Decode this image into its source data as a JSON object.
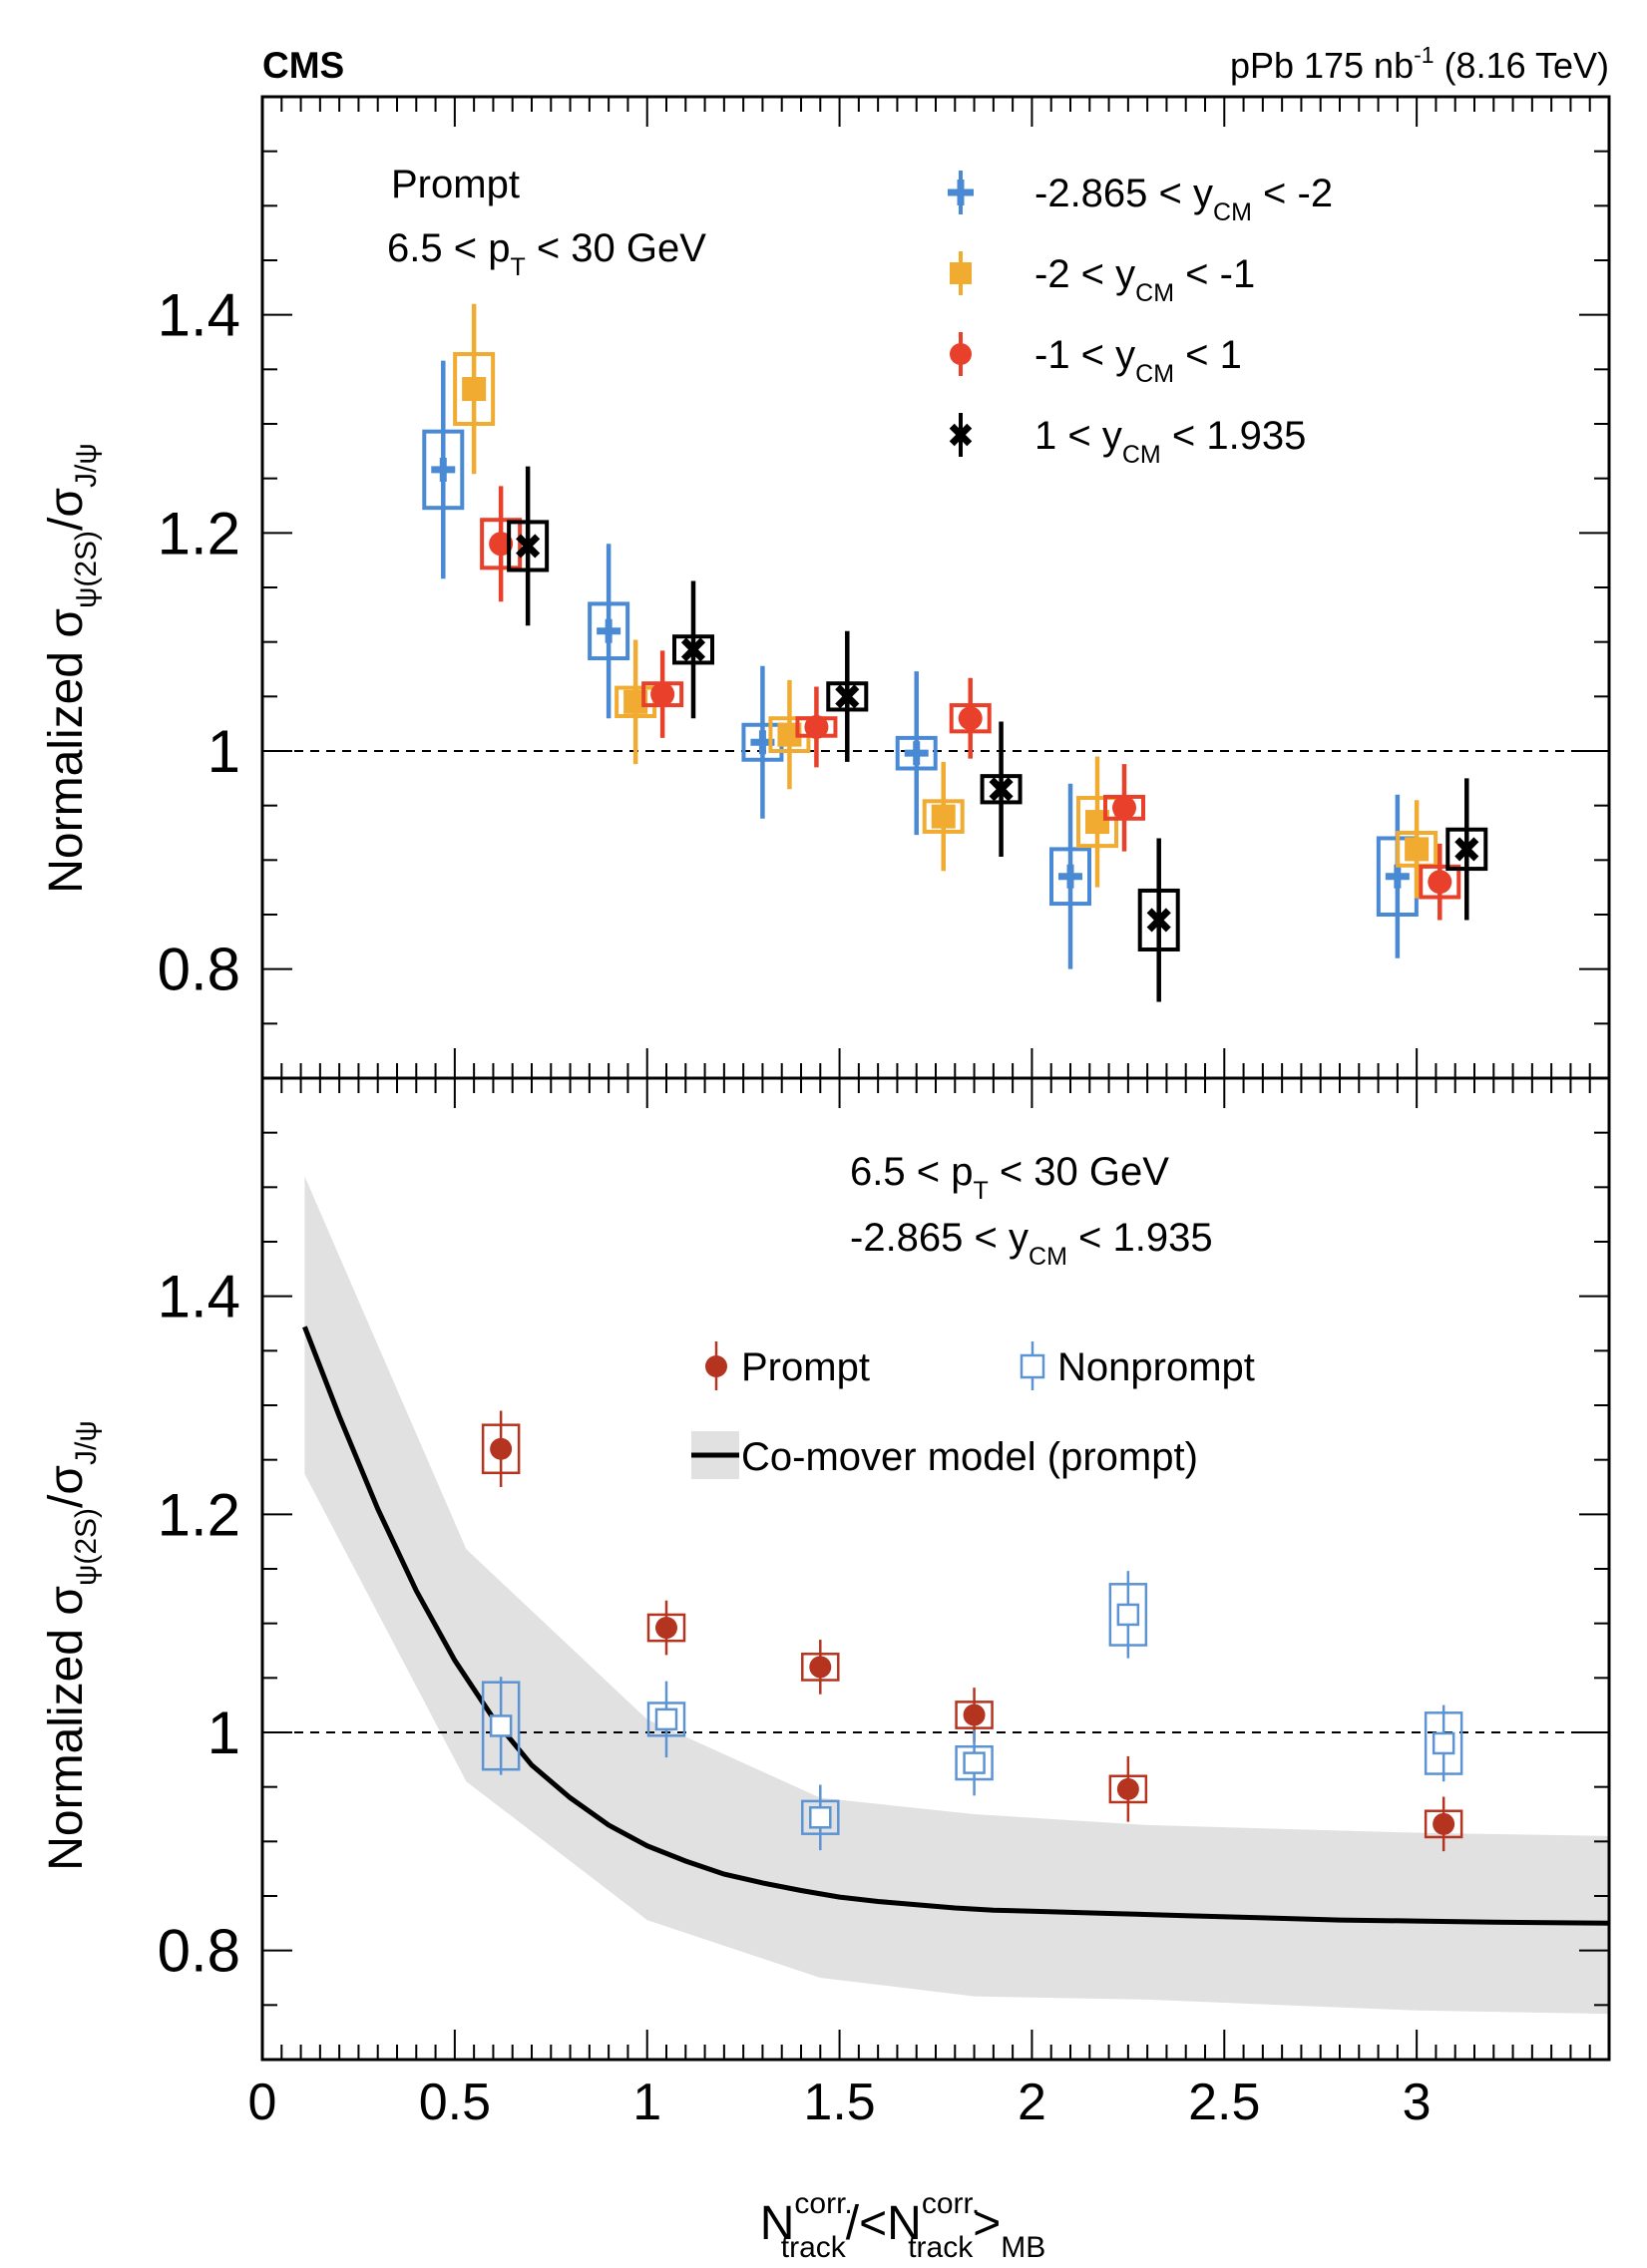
{
  "experiment": "CMS",
  "lumi": {
    "pre": "pPb 175 nb",
    "sup": "-1",
    "post": " (8.16 TeV)"
  },
  "colors": {
    "blue": "#4a8ad4",
    "orange": "#f0ab30",
    "red": "#e8402a",
    "black": "#000000",
    "prompt": "#b5341f",
    "nonprompt": "#5b93d3",
    "band": "#e1e1e1"
  },
  "axes": {
    "xlim": [
      0,
      3.5
    ],
    "ylim": [
      0.7,
      1.6
    ],
    "x_ticks": [
      0,
      0.5,
      1,
      1.5,
      2,
      2.5,
      3
    ],
    "x_tick_labels": [
      "0",
      "0.5",
      "1",
      "1.5",
      "2",
      "2.5",
      "3"
    ],
    "y_ticks": [
      0.8,
      1.0,
      1.2,
      1.4
    ],
    "y_tick_labels": [
      "0.8",
      "1",
      "1.2",
      "1.4"
    ],
    "xlabel": {
      "a": "N",
      "a_sup": "corr.",
      "a_sub": "track",
      "mid": "/<N",
      "b_sup": "corr.",
      "b_sub": "track",
      "c": ">",
      "c_sub": "MB"
    },
    "ylabel": {
      "pre": "Normalized σ",
      "sub1": "ψ(2S)",
      "mid": "/σ",
      "sub2": "J/ψ"
    }
  },
  "chart_data": [
    {
      "type": "scatter",
      "panel": "top",
      "annotations": [
        {
          "parts": [
            {
              "t": "Prompt"
            }
          ]
        },
        {
          "parts": [
            {
              "t": "6.5 < p"
            },
            {
              "t": "T",
              "sub": true
            },
            {
              "t": " < 30 GeV"
            }
          ]
        }
      ],
      "legend": [
        {
          "parts": [
            {
              "t": "-2.865 < y"
            },
            {
              "t": "CM",
              "sub": true
            },
            {
              "t": " < -2"
            }
          ],
          "marker": "plus",
          "color": "#4a8ad4"
        },
        {
          "parts": [
            {
              "t": "-2 < y"
            },
            {
              "t": "CM",
              "sub": true
            },
            {
              "t": " < -1"
            }
          ],
          "marker": "square",
          "color": "#f0ab30"
        },
        {
          "parts": [
            {
              "t": "-1 < y"
            },
            {
              "t": "CM",
              "sub": true
            },
            {
              "t": " < 1"
            }
          ],
          "marker": "circle",
          "color": "#e8402a"
        },
        {
          "parts": [
            {
              "t": "1 < y"
            },
            {
              "t": "CM",
              "sub": true
            },
            {
              "t": " < 1.935"
            }
          ],
          "marker": "cross",
          "color": "#000000"
        }
      ],
      "series": [
        {
          "name": "-2.865 < yCM < -2",
          "marker": "plus",
          "color": "#4a8ad4",
          "points": [
            {
              "x": 0.47,
              "y": 1.258,
              "stat": 0.1,
              "syst": 0.035
            },
            {
              "x": 0.9,
              "y": 1.11,
              "stat": 0.08,
              "syst": 0.025
            },
            {
              "x": 1.3,
              "y": 1.008,
              "stat": 0.07,
              "syst": 0.016
            },
            {
              "x": 1.7,
              "y": 0.998,
              "stat": 0.075,
              "syst": 0.014
            },
            {
              "x": 2.1,
              "y": 0.885,
              "stat": 0.085,
              "syst": 0.025
            },
            {
              "x": 2.95,
              "y": 0.885,
              "stat": 0.075,
              "syst": 0.035
            }
          ]
        },
        {
          "name": "-2 < yCM < -1",
          "marker": "square",
          "color": "#f0ab30",
          "points": [
            {
              "x": 0.55,
              "y": 1.332,
              "stat": 0.078,
              "syst": 0.032
            },
            {
              "x": 0.97,
              "y": 1.045,
              "stat": 0.057,
              "syst": 0.013
            },
            {
              "x": 1.37,
              "y": 1.015,
              "stat": 0.05,
              "syst": 0.015
            },
            {
              "x": 1.77,
              "y": 0.94,
              "stat": 0.05,
              "syst": 0.014
            },
            {
              "x": 2.17,
              "y": 0.935,
              "stat": 0.06,
              "syst": 0.022
            },
            {
              "x": 3.0,
              "y": 0.91,
              "stat": 0.045,
              "syst": 0.015
            }
          ]
        },
        {
          "name": "-1 < yCM < 1",
          "marker": "circle",
          "color": "#e8402a",
          "points": [
            {
              "x": 0.62,
              "y": 1.19,
              "stat": 0.053,
              "syst": 0.022
            },
            {
              "x": 1.04,
              "y": 1.052,
              "stat": 0.04,
              "syst": 0.01
            },
            {
              "x": 1.44,
              "y": 1.022,
              "stat": 0.037,
              "syst": 0.008
            },
            {
              "x": 1.84,
              "y": 1.03,
              "stat": 0.037,
              "syst": 0.012
            },
            {
              "x": 2.24,
              "y": 0.948,
              "stat": 0.04,
              "syst": 0.01
            },
            {
              "x": 3.06,
              "y": 0.88,
              "stat": 0.035,
              "syst": 0.014
            }
          ]
        },
        {
          "name": "1 < yCM < 1.935",
          "marker": "cross",
          "color": "#000000",
          "points": [
            {
              "x": 0.69,
              "y": 1.188,
              "stat": 0.073,
              "syst": 0.022
            },
            {
              "x": 1.12,
              "y": 1.093,
              "stat": 0.063,
              "syst": 0.012
            },
            {
              "x": 1.52,
              "y": 1.05,
              "stat": 0.06,
              "syst": 0.012
            },
            {
              "x": 1.92,
              "y": 0.965,
              "stat": 0.062,
              "syst": 0.012
            },
            {
              "x": 2.33,
              "y": 0.845,
              "stat": 0.075,
              "syst": 0.027
            },
            {
              "x": 3.13,
              "y": 0.91,
              "stat": 0.065,
              "syst": 0.018
            }
          ]
        }
      ]
    },
    {
      "type": "scatter",
      "panel": "bottom",
      "annotations": [
        {
          "parts": [
            {
              "t": "6.5 < p"
            },
            {
              "t": "T",
              "sub": true
            },
            {
              "t": " < 30 GeV"
            }
          ]
        },
        {
          "parts": [
            {
              "t": "-2.865 < y"
            },
            {
              "t": "CM",
              "sub": true
            },
            {
              "t": " < 1.935"
            }
          ]
        }
      ],
      "legend": [
        {
          "label": "Prompt",
          "marker": "circle",
          "color": "#b5341f"
        },
        {
          "label": "Nonprompt",
          "marker": "open-square",
          "color": "#5b93d3"
        },
        {
          "label": "Co-mover model (prompt)",
          "marker": "line-band",
          "color": "#000000"
        }
      ],
      "series": [
        {
          "name": "Prompt",
          "marker": "circle",
          "color": "#b5341f",
          "points": [
            {
              "x": 0.62,
              "y": 1.26,
              "stat": 0.035,
              "syst": 0.022
            },
            {
              "x": 1.05,
              "y": 1.096,
              "stat": 0.025,
              "syst": 0.012
            },
            {
              "x": 1.45,
              "y": 1.06,
              "stat": 0.025,
              "syst": 0.012
            },
            {
              "x": 1.85,
              "y": 1.016,
              "stat": 0.025,
              "syst": 0.012
            },
            {
              "x": 2.25,
              "y": 0.948,
              "stat": 0.03,
              "syst": 0.012
            },
            {
              "x": 3.07,
              "y": 0.916,
              "stat": 0.025,
              "syst": 0.012
            }
          ]
        },
        {
          "name": "Nonprompt",
          "marker": "open-square",
          "color": "#5b93d3",
          "points": [
            {
              "x": 0.62,
              "y": 1.006,
              "stat": 0.045,
              "syst": 0.04
            },
            {
              "x": 1.05,
              "y": 1.012,
              "stat": 0.035,
              "syst": 0.015
            },
            {
              "x": 1.45,
              "y": 0.922,
              "stat": 0.03,
              "syst": 0.015
            },
            {
              "x": 1.85,
              "y": 0.972,
              "stat": 0.03,
              "syst": 0.015
            },
            {
              "x": 2.25,
              "y": 1.108,
              "stat": 0.04,
              "syst": 0.028
            },
            {
              "x": 3.07,
              "y": 0.99,
              "stat": 0.035,
              "syst": 0.028
            }
          ]
        }
      ],
      "model": {
        "name": "Co-mover model (prompt)",
        "x": [
          0.11,
          0.2,
          0.3,
          0.4,
          0.5,
          0.6,
          0.7,
          0.8,
          0.9,
          1.0,
          1.1,
          1.2,
          1.3,
          1.4,
          1.5,
          1.6,
          1.7,
          1.8,
          1.9,
          2.0,
          2.2,
          2.4,
          2.6,
          2.8,
          3.0,
          3.2,
          3.5
        ],
        "y": [
          1.372,
          1.29,
          1.205,
          1.13,
          1.066,
          1.013,
          0.97,
          0.94,
          0.915,
          0.896,
          0.882,
          0.87,
          0.862,
          0.855,
          0.849,
          0.845,
          0.842,
          0.839,
          0.837,
          0.836,
          0.834,
          0.832,
          0.83,
          0.828,
          0.827,
          0.826,
          0.825
        ],
        "band_x": [
          0.11,
          0.53,
          1.0,
          1.45,
          1.85,
          2.3,
          3.0,
          3.5
        ],
        "band_low": [
          1.237,
          0.955,
          0.828,
          0.775,
          0.758,
          0.755,
          0.745,
          0.742
        ],
        "band_high": [
          1.51,
          1.168,
          1.012,
          0.94,
          0.925,
          0.915,
          0.908,
          0.905
        ]
      }
    }
  ]
}
